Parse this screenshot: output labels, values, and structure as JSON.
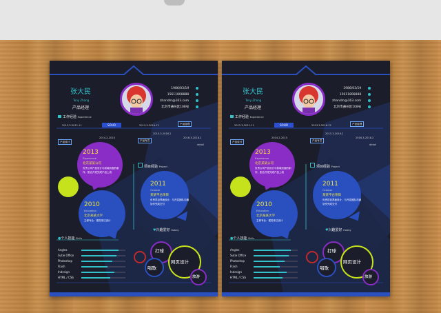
{
  "scene": {
    "colors": {
      "card_bg": "#1b1e2a",
      "accent_blue": "#2a4fbf",
      "teal": "#33c1c9",
      "purple": "#8a2cc6",
      "lime": "#c5e21c",
      "yellow": "#f0e43a"
    }
  },
  "resume": {
    "name": "张大民",
    "english_name": "Tony Zhang",
    "title": "产品经理",
    "info": [
      "1986/03/19",
      "15611808888",
      "zhandm@163.com",
      "北京市通州区108号"
    ],
    "work_section": {
      "title": "工作经验",
      "sub": "Experience"
    },
    "timeline": [
      "2012.3-2011.11",
      "SOHO",
      "2013.3-2016.12"
    ],
    "tags": [
      "产品设计",
      "产品专员",
      "产品经理"
    ],
    "tag_dates": [
      "2014.2-2015",
      "2015.3-2016.2",
      "2016.3-2018.2"
    ],
    "right_small": "detail",
    "bubble_2013": {
      "year": "2013",
      "sub": "Experience",
      "title": "北京某某公司",
      "text": "负责公司产品设计与前端页面的制作、配合开发完成产品上线"
    },
    "bubble_2010": {
      "year": "2010",
      "sub": "Education",
      "title": "北京某某大学",
      "text": "主修专业：视觉传达设计"
    },
    "project_section": {
      "title": "项目经验",
      "sub": "Project"
    },
    "bubble_2011": {
      "year": "2011",
      "sub": "October",
      "title": "某某平台项目",
      "text": "负责项目界面设计、与开发团队沟通协作完成交付"
    },
    "skills_section": {
      "title": "个人技能",
      "sub": "Skills"
    },
    "skills": [
      {
        "name": "Angles",
        "level": 0.85
      },
      {
        "name": "Sutie Office",
        "level": 0.8
      },
      {
        "name": "Photoshop",
        "level": 0.7
      },
      {
        "name": "Flash",
        "level": 0.6
      },
      {
        "name": "Indesign",
        "level": 0.75
      },
      {
        "name": "HTML / CSS",
        "level": 0.65
      }
    ],
    "hobby_section": {
      "title": "兴趣爱好",
      "sub": "Hobby"
    },
    "hobbies": [
      "打球",
      "网页设计",
      "唱歌",
      "旅游"
    ]
  }
}
